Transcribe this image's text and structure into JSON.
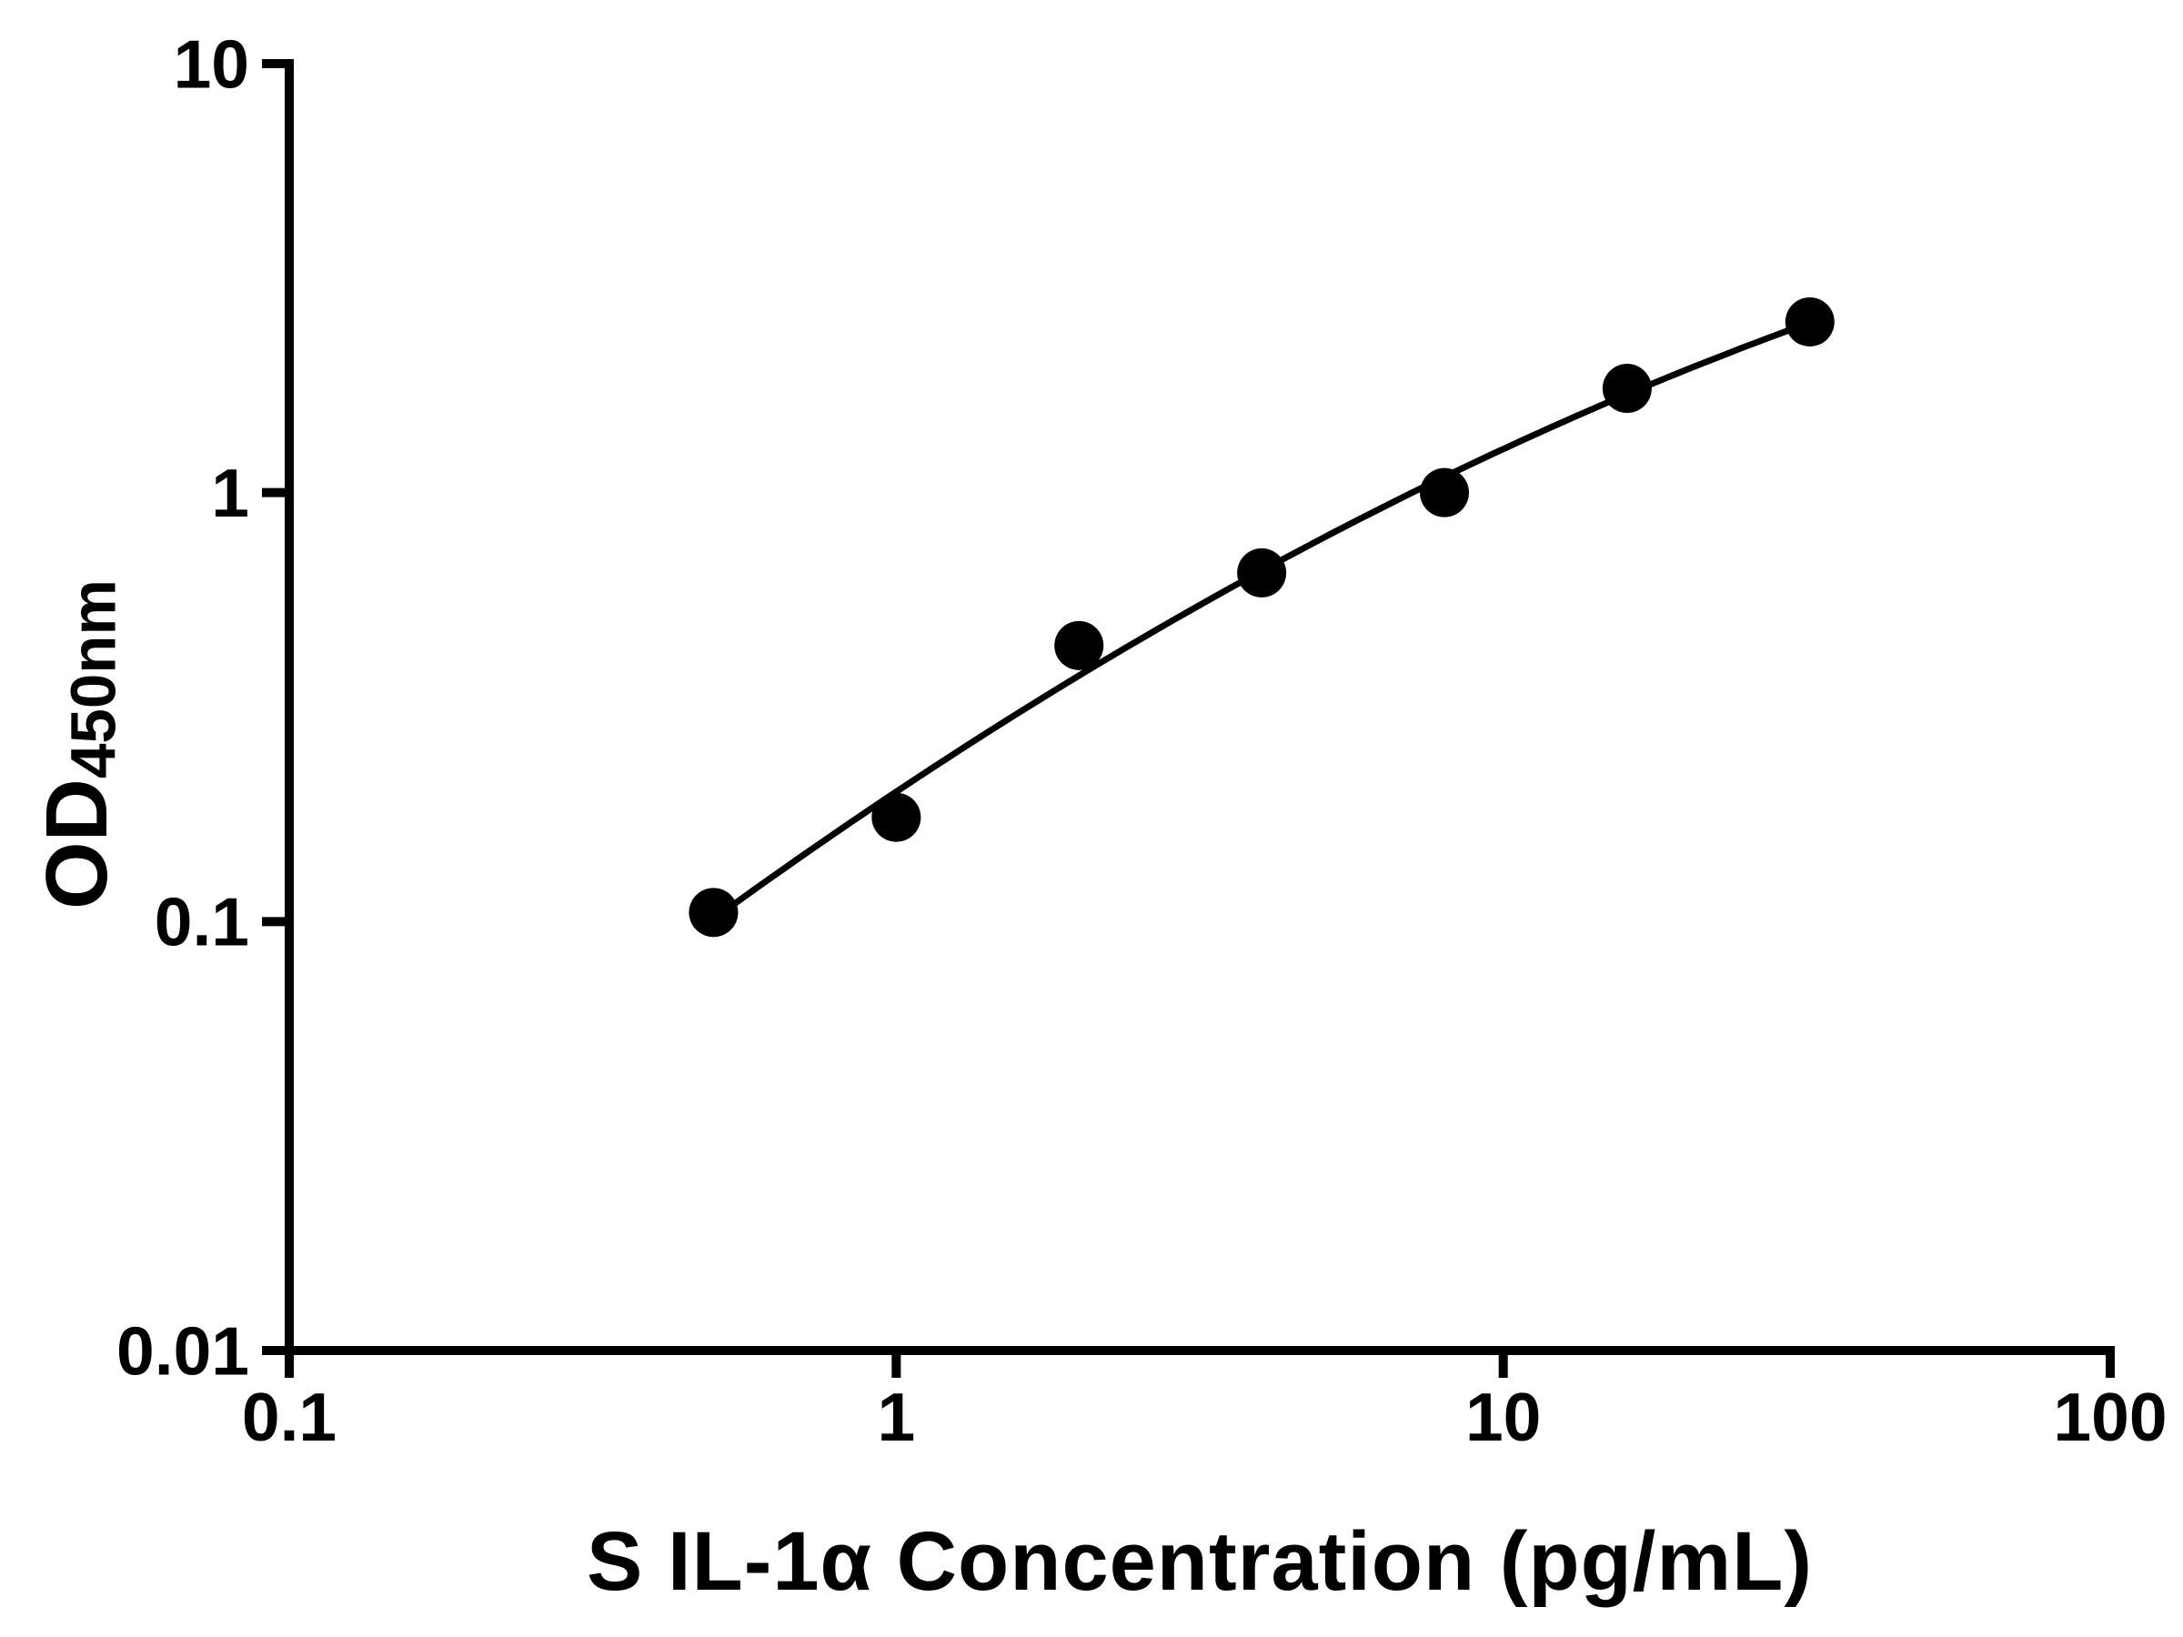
{
  "figure": {
    "background_color": "#ffffff",
    "axis_color": "#000000",
    "text_color": "#000000"
  },
  "chart_data": {
    "type": "scatter",
    "title": "",
    "xlabel": "S IL-1α Concentration (pg/mL)",
    "ylabel": "OD450nm",
    "ylabel_main": "OD",
    "ylabel_sub": "450nm",
    "x_scale": "log",
    "y_scale": "log",
    "xlim": [
      0.1,
      100
    ],
    "ylim": [
      0.01,
      10
    ],
    "grid": false,
    "legend": null,
    "x": [
      0.5,
      1,
      2,
      4,
      8,
      16,
      32
    ],
    "y": [
      0.105,
      0.175,
      0.44,
      0.65,
      1.0,
      1.75,
      2.5
    ],
    "x_ticks": [
      {
        "value": 0.1,
        "label": "0.1"
      },
      {
        "value": 1,
        "label": "1"
      },
      {
        "value": 10,
        "label": "10"
      },
      {
        "value": 100,
        "label": "100"
      }
    ],
    "y_ticks": [
      {
        "value": 0.01,
        "label": "0.01"
      },
      {
        "value": 0.1,
        "label": "0.1"
      },
      {
        "value": 1,
        "label": "1"
      },
      {
        "value": 10,
        "label": "10"
      }
    ],
    "marker": {
      "shape": "circle",
      "color": "#000000",
      "radius_px": 27
    },
    "fit_curve": {
      "model": "quadratic_log10",
      "a": -0.1821,
      "b": 0.7697,
      "c": -0.1432,
      "u_center": 0.602,
      "x_start": 0.5,
      "x_end": 32,
      "color": "#000000"
    }
  }
}
